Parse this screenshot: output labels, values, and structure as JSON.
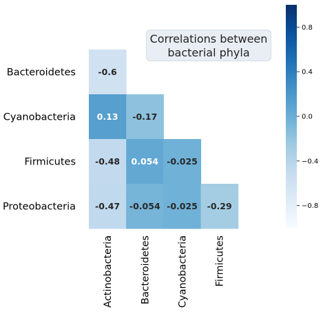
{
  "chart_data": {
    "type": "heatmap",
    "title_lines": [
      "Correlations between",
      "bacterial phyla"
    ],
    "rows": [
      "Bacteroidetes",
      "Cyanobacteria",
      "Firmicutes",
      "Proteobacteria"
    ],
    "cols": [
      "Actinobacteria",
      "Bacteroidetes",
      "Cyanobacteria",
      "Firmicutes"
    ],
    "values": [
      [
        -0.6,
        null,
        null,
        null
      ],
      [
        0.13,
        -0.17,
        null,
        null
      ],
      [
        -0.48,
        0.054,
        -0.025,
        null
      ],
      [
        -0.47,
        -0.054,
        -0.025,
        -0.29
      ]
    ],
    "labels": [
      [
        "-0.6",
        "",
        "",
        ""
      ],
      [
        "0.13",
        "-0.17",
        "",
        ""
      ],
      [
        "-0.48",
        "0.054",
        "-0.025",
        ""
      ],
      [
        "-0.47",
        "-0.054",
        "-0.025",
        "-0.29"
      ]
    ],
    "colorbar": {
      "range": [
        -1,
        1
      ],
      "ticks": [
        0.8,
        0.4,
        0.0,
        -0.4,
        -0.8
      ],
      "tick_labels": [
        "0.8",
        "0.4",
        "0.0",
        "−0.4",
        "−0.8"
      ],
      "colormap": "Blues"
    }
  }
}
